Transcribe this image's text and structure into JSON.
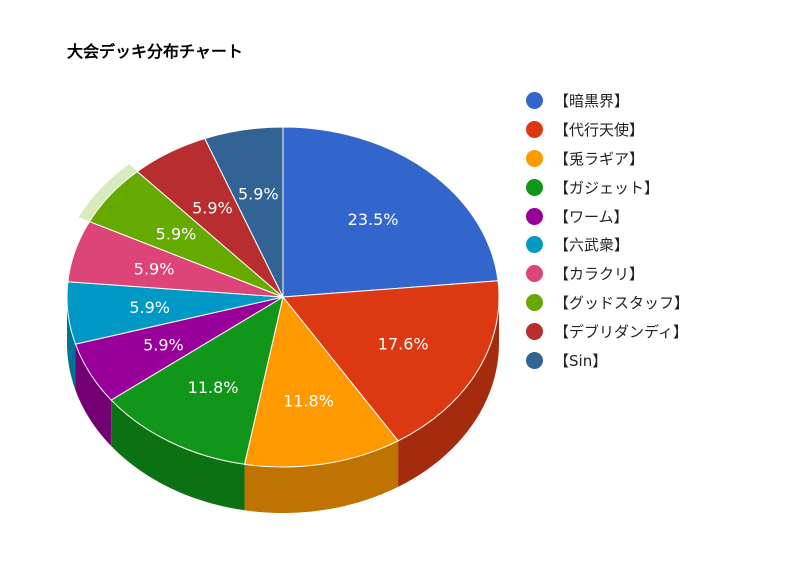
{
  "chart_data": {
    "type": "pie",
    "title": "大会デッキ分布チャート",
    "three_d": true,
    "legend_position": "right",
    "slices": [
      {
        "label": "【暗黒界】",
        "value": 23.5,
        "value_label": "23.5%",
        "color": "#3366cc",
        "side_color": "#264c99"
      },
      {
        "label": "【代行天使】",
        "value": 17.6,
        "value_label": "17.6%",
        "color": "#dc3912",
        "side_color": "#a52b0e"
      },
      {
        "label": "【兎ラギア】",
        "value": 11.8,
        "value_label": "11.8%",
        "color": "#ff9900",
        "side_color": "#bf7300"
      },
      {
        "label": "【ガジェット】",
        "value": 11.8,
        "value_label": "11.8%",
        "color": "#109618",
        "side_color": "#0c7112"
      },
      {
        "label": "【ワーム】",
        "value": 5.9,
        "value_label": "5.9%",
        "color": "#990099",
        "side_color": "#730073"
      },
      {
        "label": "【六武衆】",
        "value": 5.9,
        "value_label": "5.9%",
        "color": "#0099c6",
        "side_color": "#007395"
      },
      {
        "label": "【カラクリ】",
        "value": 5.9,
        "value_label": "5.9%",
        "color": "#dd4477",
        "side_color": "#a63359"
      },
      {
        "label": "【グッドスタッフ】",
        "value": 5.9,
        "value_label": "5.9%",
        "color": "#66aa00",
        "side_color": "#4d8000",
        "highlighted": true
      },
      {
        "label": "【デブリダンディ】",
        "value": 5.9,
        "value_label": "5.9%",
        "color": "#b82e2e",
        "side_color": "#8a2222"
      },
      {
        "label": "【Sin】",
        "value": 5.9,
        "value_label": "5.9%",
        "color": "#316395",
        "side_color": "#254a70"
      }
    ]
  }
}
